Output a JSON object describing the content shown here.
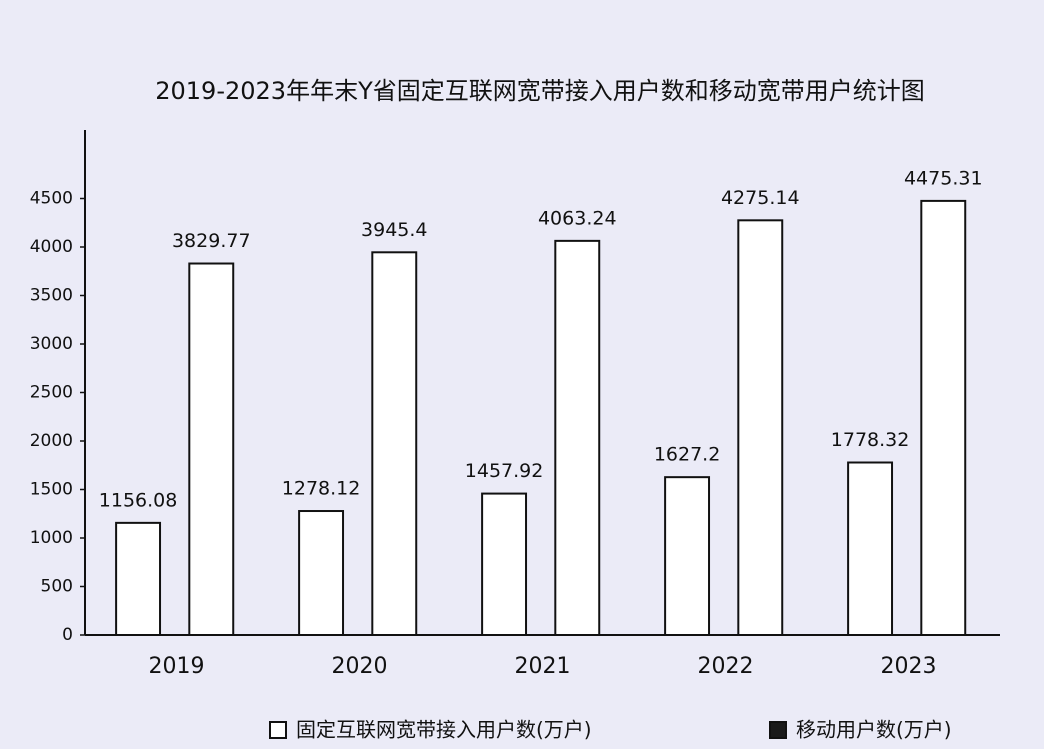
{
  "chart_data": {
    "type": "bar",
    "title": "2019-2023年年末Y省固定互联网宽带接入用户数和移动宽带用户统计图",
    "categories": [
      "2019",
      "2020",
      "2021",
      "2022",
      "2023"
    ],
    "series": [
      {
        "name": "固定互联网宽带接入用户数(万户)",
        "color": "#ffffff",
        "values": [
          1156.08,
          1278.12,
          1457.92,
          1627.2,
          1778.32
        ]
      },
      {
        "name": "移动用户数(万户)",
        "color": "#1a1a1a",
        "values": [
          3829.77,
          3945.4,
          4063.24,
          4275.14,
          4475.31
        ]
      }
    ],
    "ylim": [
      0,
      5000
    ],
    "yticks": [
      0,
      500,
      1000,
      1500,
      2000,
      2500,
      3000,
      3500,
      4000,
      4500
    ],
    "grid": false
  }
}
